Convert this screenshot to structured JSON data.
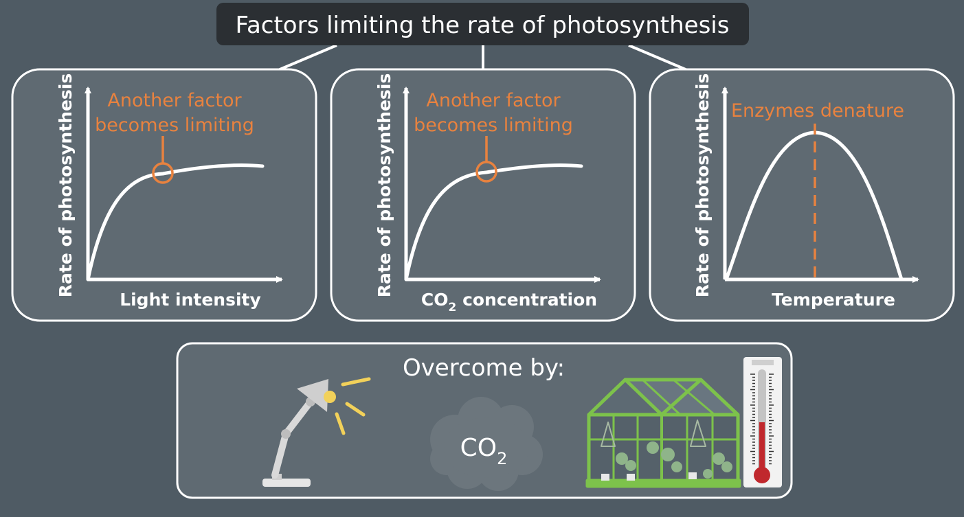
{
  "title": "Factors limiting the rate of photosynthesis",
  "panels": [
    {
      "ylabel": "Rate of photosynthesis",
      "xlabel": "Light intensity",
      "annotation_line1": "Another factor",
      "annotation_line2": "becomes limiting"
    },
    {
      "ylabel": "Rate of photosynthesis",
      "xlabel_main": "CO",
      "xlabel_sub": "2",
      "xlabel_rest": " concentration",
      "annotation_line1": "Another factor",
      "annotation_line2": "becomes limiting"
    },
    {
      "ylabel": "Rate of photosynthesis",
      "xlabel": "Temperature",
      "annotation": "Enzymes denature"
    }
  ],
  "overcome": {
    "label": "Overcome by:",
    "cloud_main": "CO",
    "cloud_sub": "2"
  },
  "colors": {
    "background": "#4f5b64",
    "panel": "#5f6a72",
    "accent": "#e8823f",
    "title_box": "#2b2f33",
    "greenhouse": "#7dc24b",
    "thermometer_red": "#c0282d"
  },
  "icons": [
    "desk-lamp-icon",
    "co2-cloud-icon",
    "greenhouse-icon",
    "thermometer-icon"
  ]
}
